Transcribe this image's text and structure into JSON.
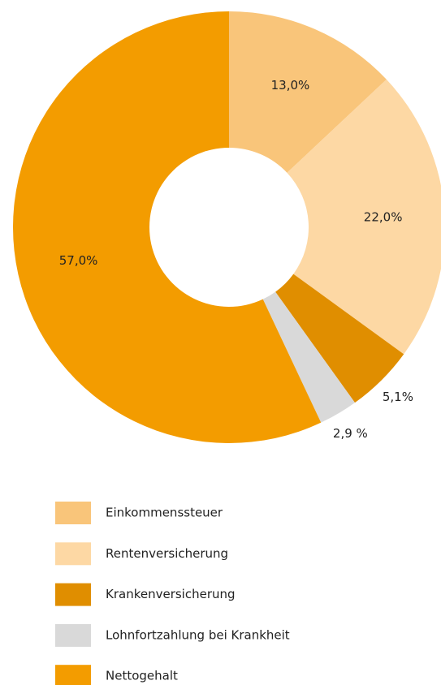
{
  "chart_data": {
    "type": "donut",
    "categories": [
      "Einkommenssteuer",
      "Rentenversicherung",
      "Krankenversicherung",
      "Lohnfortzahlung bei Krankheit",
      "Nettogehalt"
    ],
    "values": [
      13.0,
      22.0,
      5.1,
      2.9,
      57.0
    ],
    "value_labels": [
      "13,0%",
      "22,0%",
      "5,1%",
      "2,9 %",
      "57,0%"
    ],
    "colors": [
      "#f9c57a",
      "#fdd8a4",
      "#e08e00",
      "#d9d9d9",
      "#f39c00"
    ],
    "legend": "bottom"
  }
}
